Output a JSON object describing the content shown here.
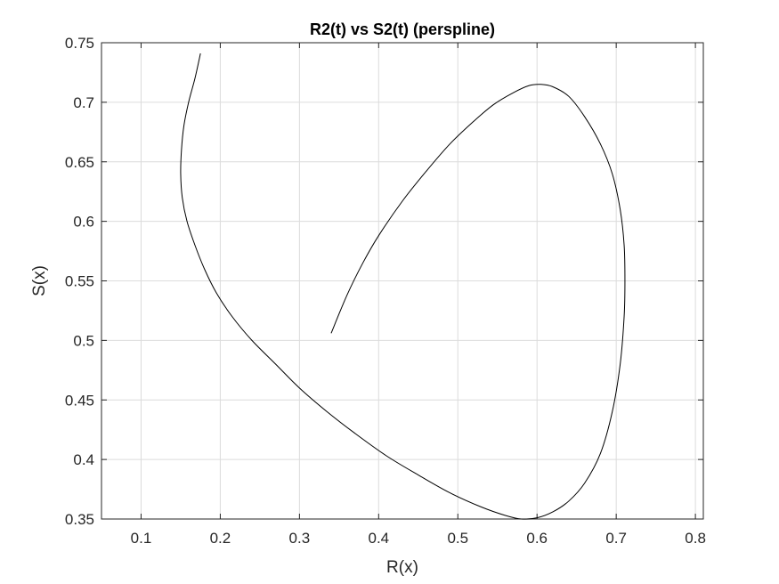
{
  "chart_data": {
    "type": "line",
    "title": "R2(t) vs S2(t) (perspline)",
    "xlabel": "R(x)",
    "ylabel": "S(x)",
    "xlim": [
      0.05,
      0.81
    ],
    "ylim": [
      0.35,
      0.75
    ],
    "xticks": [
      0.1,
      0.2,
      0.3,
      0.4,
      0.5,
      0.6,
      0.7,
      0.8
    ],
    "yticks": [
      0.35,
      0.4,
      0.45,
      0.5,
      0.55,
      0.6,
      0.65,
      0.7,
      0.75
    ],
    "xtick_labels": [
      "0.1",
      "0.2",
      "0.3",
      "0.4",
      "0.5",
      "0.6",
      "0.7",
      "0.8"
    ],
    "ytick_labels": [
      "0.35",
      "0.4",
      "0.45",
      "0.5",
      "0.55",
      "0.6",
      "0.65",
      "0.7",
      "0.75"
    ],
    "grid": true,
    "line_color": "#000000",
    "series": [
      {
        "x": [
          0.175,
          0.168,
          0.16,
          0.154,
          0.151,
          0.15,
          0.152,
          0.158,
          0.168,
          0.18,
          0.195,
          0.215,
          0.24,
          0.27,
          0.3,
          0.335,
          0.37,
          0.41,
          0.45,
          0.49,
          0.53,
          0.56,
          0.58,
          0.6,
          0.62,
          0.64,
          0.66,
          0.68,
          0.695,
          0.705,
          0.71,
          0.711,
          0.71,
          0.705,
          0.695,
          0.68,
          0.66,
          0.64,
          0.62,
          0.605,
          0.59,
          0.57,
          0.545,
          0.52,
          0.49,
          0.46,
          0.43,
          0.4,
          0.38,
          0.36,
          0.34
        ],
        "y": [
          0.741,
          0.72,
          0.7,
          0.68,
          0.66,
          0.64,
          0.62,
          0.6,
          0.58,
          0.56,
          0.54,
          0.52,
          0.5,
          0.48,
          0.46,
          0.44,
          0.422,
          0.403,
          0.387,
          0.372,
          0.36,
          0.353,
          0.35,
          0.351,
          0.356,
          0.365,
          0.38,
          0.405,
          0.44,
          0.48,
          0.52,
          0.55,
          0.58,
          0.61,
          0.64,
          0.665,
          0.688,
          0.705,
          0.713,
          0.715,
          0.714,
          0.708,
          0.698,
          0.684,
          0.665,
          0.642,
          0.617,
          0.588,
          0.565,
          0.538,
          0.506
        ]
      }
    ]
  }
}
